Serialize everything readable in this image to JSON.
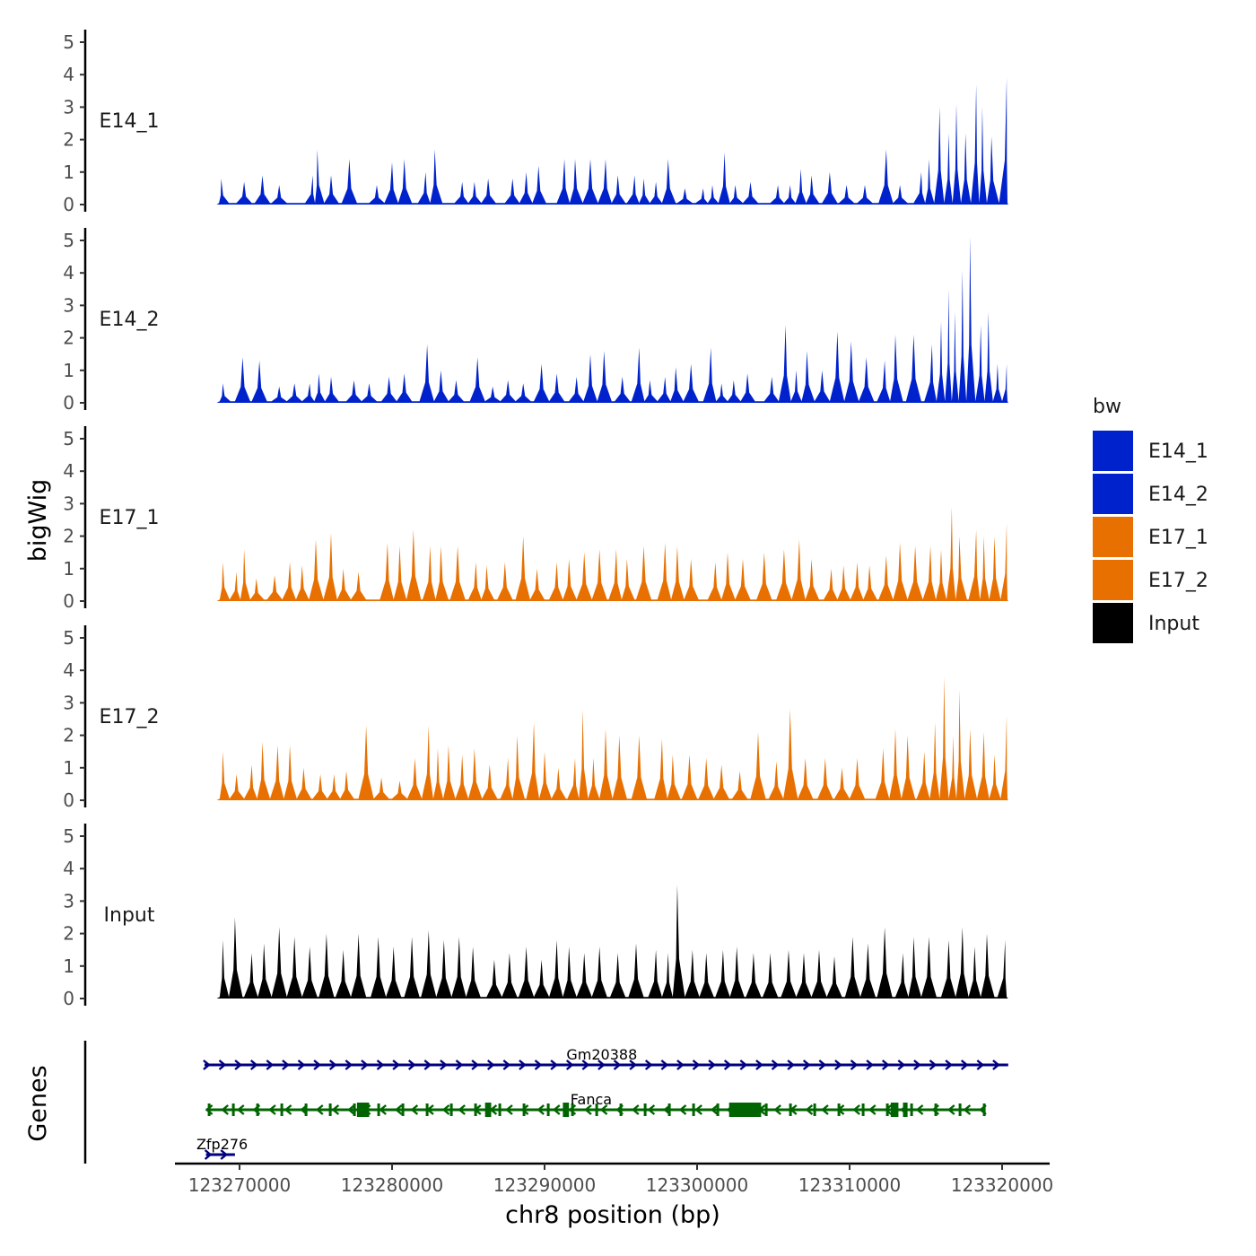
{
  "chart_data": {
    "type": "area",
    "title": "",
    "xlabel": "chr8 position (bp)",
    "ylabel": "bigWig",
    "genes_label": "Genes",
    "x_range": [
      123267500,
      123320500
    ],
    "x_ticks": [
      123270000,
      123280000,
      123290000,
      123300000,
      123310000,
      123320000
    ],
    "y_range": [
      0,
      5.3
    ],
    "y_ticks": [
      0,
      1,
      2,
      3,
      4,
      5
    ],
    "legend": {
      "title": "bw",
      "position": "right",
      "entries": [
        {
          "label": "E14_1",
          "color": "#0022CC"
        },
        {
          "label": "E14_2",
          "color": "#0022CC"
        },
        {
          "label": "E17_1",
          "color": "#E87000"
        },
        {
          "label": "E17_2",
          "color": "#E87000"
        },
        {
          "label": "Input",
          "color": "#000000"
        }
      ]
    },
    "series": [
      {
        "name": "E14_1",
        "color": "#0022CC",
        "peaks": [
          [
            123268800,
            0.8
          ],
          [
            123270300,
            0.7
          ],
          [
            123271500,
            0.9
          ],
          [
            123272600,
            0.6
          ],
          [
            123274800,
            0.9
          ],
          [
            123275100,
            1.7
          ],
          [
            123276000,
            0.9
          ],
          [
            123277200,
            1.4
          ],
          [
            123279000,
            0.6
          ],
          [
            123280000,
            1.3
          ],
          [
            123280800,
            1.4
          ],
          [
            123282200,
            1.0
          ],
          [
            123282800,
            1.7
          ],
          [
            123284600,
            0.7
          ],
          [
            123285400,
            0.7
          ],
          [
            123286300,
            0.8
          ],
          [
            123287900,
            0.8
          ],
          [
            123288800,
            1.0
          ],
          [
            123289600,
            1.2
          ],
          [
            123291300,
            1.4
          ],
          [
            123292000,
            1.4
          ],
          [
            123293000,
            1.4
          ],
          [
            123294000,
            1.4
          ],
          [
            123294800,
            0.9
          ],
          [
            123295900,
            0.9
          ],
          [
            123296500,
            0.8
          ],
          [
            123297300,
            0.7
          ],
          [
            123298100,
            1.4
          ],
          [
            123299200,
            0.5
          ],
          [
            123300400,
            0.5
          ],
          [
            123301000,
            0.6
          ],
          [
            123301800,
            1.6
          ],
          [
            123302500,
            0.6
          ],
          [
            123303500,
            0.7
          ],
          [
            123305300,
            0.6
          ],
          [
            123306100,
            0.6
          ],
          [
            123306800,
            1.1
          ],
          [
            123307500,
            0.9
          ],
          [
            123308700,
            1.0
          ],
          [
            123309800,
            0.6
          ],
          [
            123311000,
            0.6
          ],
          [
            123312400,
            1.7
          ],
          [
            123313300,
            0.6
          ],
          [
            123314700,
            1.0
          ],
          [
            123315200,
            1.4
          ],
          [
            123315900,
            3.0
          ],
          [
            123316500,
            2.2
          ],
          [
            123317000,
            3.1
          ],
          [
            123317600,
            2.2
          ],
          [
            123318300,
            3.7
          ],
          [
            123318700,
            3.0
          ],
          [
            123319300,
            2.1
          ],
          [
            123320300,
            3.9
          ]
        ]
      },
      {
        "name": "E14_2",
        "color": "#0022CC",
        "peaks": [
          [
            123268900,
            0.6
          ],
          [
            123270200,
            1.4
          ],
          [
            123271300,
            1.3
          ],
          [
            123272600,
            0.5
          ],
          [
            123273600,
            0.6
          ],
          [
            123274600,
            0.6
          ],
          [
            123275200,
            0.9
          ],
          [
            123276000,
            0.8
          ],
          [
            123277500,
            0.7
          ],
          [
            123278500,
            0.6
          ],
          [
            123279800,
            0.8
          ],
          [
            123280800,
            0.9
          ],
          [
            123282300,
            1.8
          ],
          [
            123283200,
            1.0
          ],
          [
            123284200,
            0.7
          ],
          [
            123285600,
            1.4
          ],
          [
            123286600,
            0.5
          ],
          [
            123287600,
            0.7
          ],
          [
            123288600,
            0.6
          ],
          [
            123289800,
            1.2
          ],
          [
            123290800,
            0.9
          ],
          [
            123292100,
            0.8
          ],
          [
            123293000,
            1.5
          ],
          [
            123293900,
            1.6
          ],
          [
            123295100,
            0.8
          ],
          [
            123296200,
            1.7
          ],
          [
            123296900,
            0.7
          ],
          [
            123297900,
            0.8
          ],
          [
            123298600,
            1.1
          ],
          [
            123299600,
            1.2
          ],
          [
            123300900,
            1.7
          ],
          [
            123301600,
            0.6
          ],
          [
            123302400,
            0.7
          ],
          [
            123303300,
            0.9
          ],
          [
            123304900,
            0.8
          ],
          [
            123305800,
            2.4
          ],
          [
            123306500,
            1.0
          ],
          [
            123307200,
            1.6
          ],
          [
            123308200,
            1.0
          ],
          [
            123309200,
            2.2
          ],
          [
            123310100,
            1.9
          ],
          [
            123311100,
            1.4
          ],
          [
            123312300,
            1.3
          ],
          [
            123313000,
            2.1
          ],
          [
            123314200,
            2.1
          ],
          [
            123315400,
            1.8
          ],
          [
            123316000,
            2.5
          ],
          [
            123316500,
            3.5
          ],
          [
            123316900,
            2.8
          ],
          [
            123317400,
            4.1
          ],
          [
            123317900,
            5.1
          ],
          [
            123318600,
            2.4
          ],
          [
            123319100,
            2.8
          ],
          [
            123319700,
            1.2
          ],
          [
            123320300,
            1.2
          ]
        ]
      },
      {
        "name": "E17_1",
        "color": "#E87000",
        "peaks": [
          [
            123268900,
            1.2
          ],
          [
            123269800,
            0.9
          ],
          [
            123270300,
            1.6
          ],
          [
            123271100,
            0.7
          ],
          [
            123272300,
            0.8
          ],
          [
            123273300,
            1.2
          ],
          [
            123274100,
            1.1
          ],
          [
            123275000,
            1.9
          ],
          [
            123276000,
            2.1
          ],
          [
            123276800,
            1.0
          ],
          [
            123277800,
            0.9
          ],
          [
            123279700,
            1.8
          ],
          [
            123280500,
            1.7
          ],
          [
            123281400,
            2.2
          ],
          [
            123282500,
            1.7
          ],
          [
            123283200,
            1.7
          ],
          [
            123284300,
            1.7
          ],
          [
            123285500,
            1.2
          ],
          [
            123286200,
            1.1
          ],
          [
            123287400,
            1.2
          ],
          [
            123288600,
            2.0
          ],
          [
            123289500,
            1.0
          ],
          [
            123290800,
            1.2
          ],
          [
            123291600,
            1.3
          ],
          [
            123292600,
            1.5
          ],
          [
            123293600,
            1.6
          ],
          [
            123294700,
            1.6
          ],
          [
            123295400,
            1.3
          ],
          [
            123296500,
            1.7
          ],
          [
            123297900,
            1.8
          ],
          [
            123298700,
            1.7
          ],
          [
            123299600,
            1.3
          ],
          [
            123301200,
            1.2
          ],
          [
            123302000,
            1.5
          ],
          [
            123303000,
            1.3
          ],
          [
            123304400,
            1.5
          ],
          [
            123305700,
            1.6
          ],
          [
            123306700,
            1.9
          ],
          [
            123307500,
            1.3
          ],
          [
            123308800,
            1.0
          ],
          [
            123309600,
            1.1
          ],
          [
            123310500,
            1.2
          ],
          [
            123311300,
            1.1
          ],
          [
            123312400,
            1.4
          ],
          [
            123313300,
            1.8
          ],
          [
            123314300,
            1.7
          ],
          [
            123315300,
            1.7
          ],
          [
            123316000,
            1.6
          ],
          [
            123316700,
            2.9
          ],
          [
            123317200,
            2.0
          ],
          [
            123318300,
            2.2
          ],
          [
            123318800,
            2.0
          ],
          [
            123319500,
            2.0
          ],
          [
            123320300,
            2.4
          ]
        ]
      },
      {
        "name": "E17_2",
        "color": "#E87000",
        "peaks": [
          [
            123268900,
            1.5
          ],
          [
            123269800,
            0.8
          ],
          [
            123270800,
            1.1
          ],
          [
            123271500,
            1.8
          ],
          [
            123272500,
            1.7
          ],
          [
            123273300,
            1.7
          ],
          [
            123274200,
            1.0
          ],
          [
            123275300,
            0.8
          ],
          [
            123276200,
            0.8
          ],
          [
            123277000,
            0.9
          ],
          [
            123278300,
            2.3
          ],
          [
            123279300,
            0.7
          ],
          [
            123280500,
            0.6
          ],
          [
            123281500,
            1.3
          ],
          [
            123282400,
            2.3
          ],
          [
            123283000,
            1.6
          ],
          [
            123283700,
            1.7
          ],
          [
            123284600,
            1.4
          ],
          [
            123285400,
            1.6
          ],
          [
            123286400,
            1.1
          ],
          [
            123287600,
            1.3
          ],
          [
            123288200,
            2.0
          ],
          [
            123289300,
            2.4
          ],
          [
            123290000,
            1.5
          ],
          [
            123290900,
            1.0
          ],
          [
            123292000,
            1.3
          ],
          [
            123292500,
            2.8
          ],
          [
            123293200,
            1.3
          ],
          [
            123294000,
            2.2
          ],
          [
            123294900,
            2.0
          ],
          [
            123296200,
            2.0
          ],
          [
            123297700,
            1.9
          ],
          [
            123298400,
            1.4
          ],
          [
            123299500,
            1.4
          ],
          [
            123300600,
            1.3
          ],
          [
            123301600,
            1.1
          ],
          [
            123302800,
            0.9
          ],
          [
            123304000,
            2.1
          ],
          [
            123305200,
            1.2
          ],
          [
            123306100,
            2.8
          ],
          [
            123307100,
            1.3
          ],
          [
            123308400,
            1.3
          ],
          [
            123309500,
            1.0
          ],
          [
            123310500,
            1.3
          ],
          [
            123312200,
            1.6
          ],
          [
            123313000,
            2.2
          ],
          [
            123313800,
            2.0
          ],
          [
            123314900,
            1.5
          ],
          [
            123315600,
            2.4
          ],
          [
            123316200,
            3.8
          ],
          [
            123316800,
            2.0
          ],
          [
            123317200,
            3.4
          ],
          [
            123317900,
            2.2
          ],
          [
            123318800,
            2.1
          ],
          [
            123319500,
            1.4
          ],
          [
            123320300,
            2.6
          ]
        ]
      },
      {
        "name": "Input",
        "color": "#000000",
        "peaks": [
          [
            123268900,
            1.8
          ],
          [
            123269700,
            2.5
          ],
          [
            123270800,
            1.4
          ],
          [
            123271600,
            1.7
          ],
          [
            123272600,
            2.2
          ],
          [
            123273600,
            1.9
          ],
          [
            123274600,
            1.6
          ],
          [
            123275700,
            2.0
          ],
          [
            123276800,
            1.5
          ],
          [
            123277800,
            2.0
          ],
          [
            123279100,
            1.9
          ],
          [
            123280100,
            1.6
          ],
          [
            123281300,
            1.9
          ],
          [
            123282400,
            2.1
          ],
          [
            123283400,
            1.8
          ],
          [
            123284400,
            1.9
          ],
          [
            123285300,
            1.6
          ],
          [
            123286700,
            1.2
          ],
          [
            123287700,
            1.4
          ],
          [
            123288800,
            1.6
          ],
          [
            123289800,
            1.2
          ],
          [
            123290800,
            1.8
          ],
          [
            123291600,
            1.6
          ],
          [
            123292600,
            1.4
          ],
          [
            123293600,
            1.6
          ],
          [
            123294800,
            1.4
          ],
          [
            123296000,
            1.7
          ],
          [
            123297300,
            1.5
          ],
          [
            123298100,
            1.4
          ],
          [
            123298700,
            3.5
          ],
          [
            123299700,
            1.5
          ],
          [
            123300600,
            1.4
          ],
          [
            123301700,
            1.5
          ],
          [
            123302600,
            1.6
          ],
          [
            123303700,
            1.4
          ],
          [
            123304800,
            1.4
          ],
          [
            123306000,
            1.5
          ],
          [
            123307000,
            1.4
          ],
          [
            123308000,
            1.5
          ],
          [
            123309000,
            1.3
          ],
          [
            123310200,
            1.9
          ],
          [
            123311200,
            1.7
          ],
          [
            123312300,
            2.2
          ],
          [
            123313500,
            1.4
          ],
          [
            123314200,
            1.9
          ],
          [
            123315200,
            1.9
          ],
          [
            123316500,
            1.8
          ],
          [
            123317400,
            2.2
          ],
          [
            123318200,
            1.6
          ],
          [
            123319000,
            2.0
          ],
          [
            123320200,
            1.8
          ]
        ]
      }
    ],
    "genes": [
      {
        "name": "Gm20388",
        "start": 123267700,
        "end": 123320400,
        "strand": "+",
        "color": "#000080",
        "exons": []
      },
      {
        "name": "Fanca",
        "start": 123267800,
        "end": 123318900,
        "strand": "-",
        "color": "#006400",
        "exons": [
          [
            123277700,
            123278500
          ],
          [
            123286100,
            123286500
          ],
          [
            123291200,
            123291600
          ],
          [
            123302100,
            123304200
          ],
          [
            123312700,
            123313200
          ],
          [
            123313500,
            123313800
          ]
        ]
      },
      {
        "name": "Zfp276",
        "start": 123267800,
        "end": 123269700,
        "strand": "+",
        "color": "#000080",
        "exons": []
      }
    ]
  }
}
